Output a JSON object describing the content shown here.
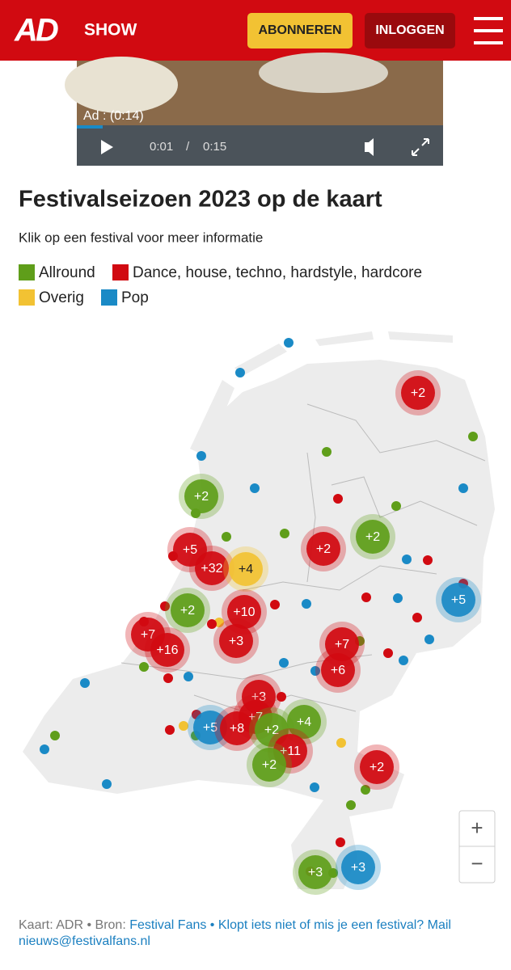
{
  "header": {
    "logo": "AD",
    "section": "SHOW",
    "subscribe": "ABONNEREN",
    "login": "INLOGGEN"
  },
  "video": {
    "ad_label": "Ad : (0:14)",
    "current_time": "0:01",
    "separator": "/",
    "duration": "0:15"
  },
  "map": {
    "title": "Festivalseizoen 2023 op de kaart",
    "subtitle": "Klik op een festival voor meer informatie",
    "legend": [
      {
        "name": "Allround",
        "color": "#5f9e1a"
      },
      {
        "name": "Dance, house, techno, hardstyle, hardcore",
        "color": "#d10a11"
      },
      {
        "name": "Overig",
        "color": "#f2c233"
      },
      {
        "name": "Pop",
        "color": "#1a8ac6"
      }
    ],
    "clusters": [
      {
        "label": "+2",
        "category": 1
      },
      {
        "label": "+2",
        "category": 0
      },
      {
        "label": "+5",
        "category": 1
      },
      {
        "label": "+32",
        "category": 1
      },
      {
        "label": "+4",
        "category": 2
      },
      {
        "label": "+2",
        "category": 1
      },
      {
        "label": "+2",
        "category": 0
      },
      {
        "label": "+2",
        "category": 0
      },
      {
        "label": "+10",
        "category": 1
      },
      {
        "label": "+7",
        "category": 1
      },
      {
        "label": "+16",
        "category": 1
      },
      {
        "label": "+3",
        "category": 1
      },
      {
        "label": "+7",
        "category": 1
      },
      {
        "label": "+6",
        "category": 1
      },
      {
        "label": "+5",
        "category": 3
      },
      {
        "label": "+3",
        "category": 1
      },
      {
        "label": "+7",
        "category": 1
      },
      {
        "label": "+5",
        "category": 3
      },
      {
        "label": "+8",
        "category": 1
      },
      {
        "label": "+2",
        "category": 0
      },
      {
        "label": "+4",
        "category": 0
      },
      {
        "label": "+11",
        "category": 1
      },
      {
        "label": "+2",
        "category": 0
      },
      {
        "label": "+2",
        "category": 1
      },
      {
        "label": "+3",
        "category": 0
      },
      {
        "label": "+3",
        "category": 3
      }
    ],
    "zoom_in": "+",
    "zoom_out": "−"
  },
  "footer": {
    "credit": "Kaart: ADR • Bron:",
    "source": "Festival Fans • Klopt iets niet of mis je een festival? Mail nieuws@festivalfans.nl"
  }
}
